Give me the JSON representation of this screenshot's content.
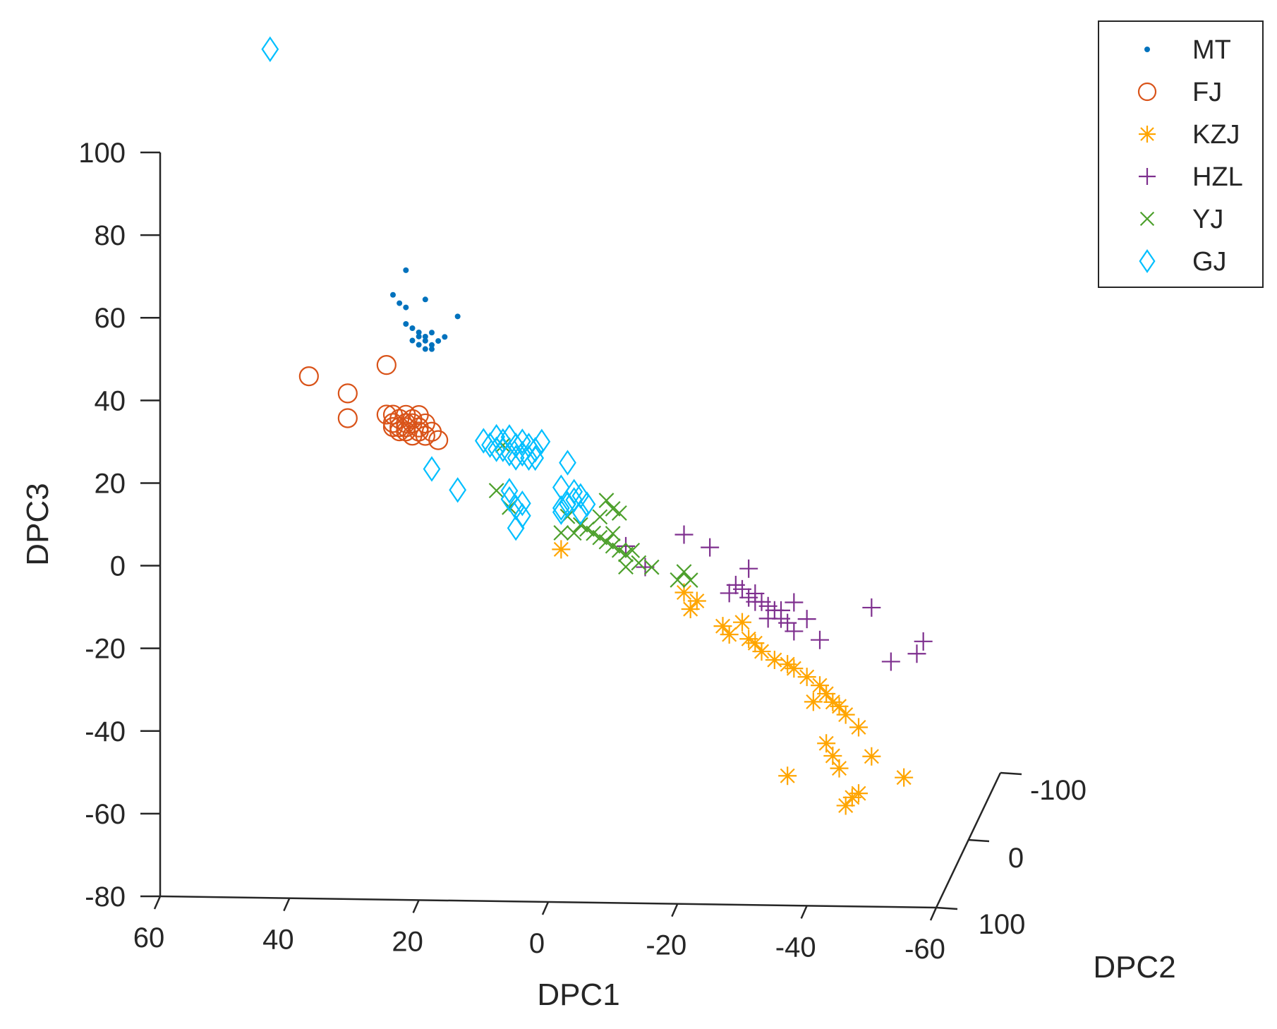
{
  "chart_data": {
    "type": "scatter",
    "projection": "3d",
    "title": "",
    "xlabel": "DPC1",
    "ylabel": "DPC2",
    "zlabel": "DPC3",
    "xlim": [
      -60,
      60
    ],
    "ylim": [
      -100,
      100
    ],
    "zlim": [
      -80,
      100
    ],
    "x_ticks": [
      "60",
      "40",
      "20",
      "0",
      "-20",
      "-40",
      "-60"
    ],
    "y_ticks": [
      "-100",
      "0",
      "100"
    ],
    "z_ticks": [
      "100",
      "80",
      "60",
      "40",
      "20",
      "0",
      "-20",
      "-40",
      "-60",
      "-80"
    ],
    "grid": false,
    "legend_position": "top-right",
    "series": [
      {
        "name": "MT",
        "marker": "dot",
        "color": "#0072BD",
        "points": [
          [
            22,
            71
          ],
          [
            24,
            65
          ],
          [
            23,
            63
          ],
          [
            22,
            62
          ],
          [
            19,
            64
          ],
          [
            14,
            60
          ],
          [
            22,
            58
          ],
          [
            21,
            57
          ],
          [
            20,
            56
          ],
          [
            20,
            55
          ],
          [
            19,
            55
          ],
          [
            19,
            54
          ],
          [
            18,
            53
          ],
          [
            19,
            52
          ],
          [
            18,
            56
          ],
          [
            17,
            54
          ],
          [
            20,
            53
          ],
          [
            21,
            54
          ],
          [
            18,
            52
          ],
          [
            16,
            55
          ]
        ]
      },
      {
        "name": "FJ",
        "marker": "circle",
        "color": "#D95319",
        "points": [
          [
            37,
            45
          ],
          [
            31,
            41
          ],
          [
            25,
            48
          ],
          [
            31,
            35
          ],
          [
            25,
            36
          ],
          [
            24,
            36
          ],
          [
            23,
            35
          ],
          [
            22,
            34
          ],
          [
            23,
            33
          ],
          [
            22,
            33
          ],
          [
            21,
            34
          ],
          [
            20,
            33
          ],
          [
            20,
            32
          ],
          [
            22,
            32
          ],
          [
            21,
            35
          ],
          [
            19,
            34
          ],
          [
            23,
            32
          ],
          [
            24,
            33
          ],
          [
            21,
            31
          ],
          [
            18,
            32
          ],
          [
            17,
            30
          ],
          [
            20,
            36
          ],
          [
            22,
            36
          ],
          [
            19,
            31
          ],
          [
            24,
            34
          ]
        ]
      },
      {
        "name": "KZJ",
        "marker": "star",
        "color": "#FFA500",
        "points": [
          [
            -2,
            4
          ],
          [
            -22,
            -10
          ],
          [
            -21,
            -6
          ],
          [
            -23,
            -8
          ],
          [
            -27,
            -14
          ],
          [
            -30,
            -13
          ],
          [
            -28,
            -16
          ],
          [
            -32,
            -18
          ],
          [
            -33,
            -20
          ],
          [
            -35,
            -22
          ],
          [
            -37,
            -23
          ],
          [
            -40,
            -26
          ],
          [
            -42,
            -28
          ],
          [
            -43,
            -30
          ],
          [
            -41,
            -32
          ],
          [
            -45,
            -33
          ],
          [
            -46,
            -35
          ],
          [
            -48,
            -38
          ],
          [
            -43,
            -42
          ],
          [
            -44,
            -45
          ],
          [
            -45,
            -48
          ],
          [
            -37,
            -50
          ],
          [
            -50,
            -45
          ],
          [
            -55,
            -50
          ],
          [
            -47,
            -55
          ],
          [
            -46,
            -57
          ],
          [
            -48,
            -54
          ],
          [
            -31,
            -17
          ],
          [
            -38,
            -24
          ],
          [
            -44,
            -32
          ]
        ]
      },
      {
        "name": "HZL",
        "marker": "plus",
        "color": "#7E2F8E",
        "points": [
          [
            -12,
            5
          ],
          [
            -21,
            8
          ],
          [
            -25,
            5
          ],
          [
            -15,
            0
          ],
          [
            -31,
            0
          ],
          [
            -29,
            -4
          ],
          [
            -28,
            -6
          ],
          [
            -30,
            -5
          ],
          [
            -31,
            -7
          ],
          [
            -32,
            -8
          ],
          [
            -33,
            -8
          ],
          [
            -34,
            -9
          ],
          [
            -35,
            -10
          ],
          [
            -36,
            -10
          ],
          [
            -36,
            -12
          ],
          [
            -37,
            -13
          ],
          [
            -38,
            -8
          ],
          [
            -38,
            -15
          ],
          [
            -40,
            -12
          ],
          [
            -42,
            -17
          ],
          [
            -50,
            -9
          ],
          [
            -53,
            -22
          ],
          [
            -57,
            -20
          ],
          [
            -58,
            -17
          ],
          [
            -32,
            -6
          ],
          [
            -34,
            -12
          ]
        ]
      },
      {
        "name": "YJ",
        "marker": "x",
        "color": "#4DA02C",
        "points": [
          [
            8,
            18
          ],
          [
            6,
            14
          ],
          [
            7,
            29
          ],
          [
            -3,
            12
          ],
          [
            -2,
            8
          ],
          [
            -4,
            8
          ],
          [
            -5,
            10
          ],
          [
            -6,
            9
          ],
          [
            -7,
            8
          ],
          [
            -8,
            7
          ],
          [
            -9,
            6
          ],
          [
            -10,
            5
          ],
          [
            -10,
            8
          ],
          [
            -11,
            4
          ],
          [
            -12,
            3
          ],
          [
            -13,
            4
          ],
          [
            -8,
            12
          ],
          [
            -10,
            14
          ],
          [
            -11,
            13
          ],
          [
            -14,
            1
          ],
          [
            -16,
            0
          ],
          [
            -20,
            -3
          ],
          [
            -21,
            -1
          ],
          [
            -22,
            -3
          ],
          [
            -12,
            0
          ],
          [
            -9,
            16
          ]
        ]
      },
      {
        "name": "GJ",
        "marker": "diamond",
        "color": "#00BFFF",
        "points": [
          [
            43,
            124
          ],
          [
            10,
            30
          ],
          [
            9,
            29
          ],
          [
            8,
            31
          ],
          [
            8,
            28
          ],
          [
            7,
            30
          ],
          [
            7,
            28
          ],
          [
            6,
            27
          ],
          [
            6,
            31
          ],
          [
            5,
            29
          ],
          [
            5,
            26
          ],
          [
            4,
            30
          ],
          [
            4,
            27
          ],
          [
            3,
            29
          ],
          [
            3,
            26
          ],
          [
            2,
            28
          ],
          [
            1,
            30
          ],
          [
            2,
            26
          ],
          [
            18,
            23
          ],
          [
            14,
            18
          ],
          [
            -3,
            25
          ],
          [
            -2,
            19
          ],
          [
            -4,
            16
          ],
          [
            -3,
            15
          ],
          [
            -2,
            14
          ],
          [
            -4,
            18
          ],
          [
            -5,
            17
          ],
          [
            -6,
            15
          ],
          [
            -2,
            13
          ],
          [
            -5,
            13
          ],
          [
            6,
            16
          ],
          [
            5,
            14
          ],
          [
            4,
            12
          ],
          [
            5,
            9
          ],
          [
            6,
            18
          ],
          [
            4,
            15
          ]
        ]
      }
    ]
  }
}
